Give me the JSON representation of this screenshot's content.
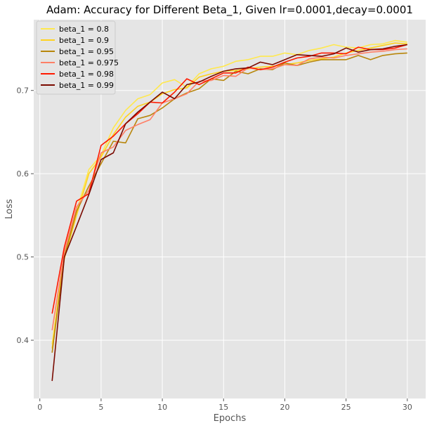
{
  "chart_data": {
    "type": "line",
    "title": "Adam: Accuracy for Different Beta_1, Given lr=0.0001,decay=0.0001",
    "xlabel": "Epochs",
    "ylabel": "Loss",
    "xlim": [
      -0.5,
      31.5
    ],
    "ylim": [
      0.33,
      0.785
    ],
    "xticks": [
      0,
      5,
      10,
      15,
      20,
      25,
      30
    ],
    "yticks": [
      0.4,
      0.5,
      0.6,
      0.7
    ],
    "ytick_labels": [
      "0.4",
      "0.5",
      "0.6",
      "0.7"
    ],
    "grid": true,
    "legend_position": "top-left",
    "x": [
      1,
      2,
      3,
      4,
      5,
      6,
      7,
      8,
      9,
      10,
      11,
      12,
      13,
      14,
      15,
      16,
      17,
      18,
      19,
      20,
      21,
      22,
      23,
      24,
      25,
      26,
      27,
      28,
      29,
      30
    ],
    "series": [
      {
        "name": "beta_1 = 0.8",
        "color": "#ffe84d",
        "values": [
          0.395,
          0.505,
          0.555,
          0.605,
          0.622,
          0.655,
          0.676,
          0.69,
          0.695,
          0.709,
          0.713,
          0.704,
          0.72,
          0.726,
          0.729,
          0.735,
          0.737,
          0.741,
          0.741,
          0.745,
          0.743,
          0.748,
          0.751,
          0.755,
          0.752,
          0.751,
          0.755,
          0.756,
          0.76,
          0.758
        ]
      },
      {
        "name": "beta_1 = 0.9",
        "color": "#ffd21f",
        "values": [
          0.39,
          0.498,
          0.55,
          0.6,
          0.62,
          0.647,
          0.668,
          0.681,
          0.686,
          0.696,
          0.701,
          0.703,
          0.716,
          0.72,
          0.723,
          0.724,
          0.726,
          0.728,
          0.729,
          0.731,
          0.733,
          0.736,
          0.738,
          0.74,
          0.745,
          0.748,
          0.751,
          0.754,
          0.757,
          0.756
        ]
      },
      {
        "name": "beta_1 = 0.95",
        "color": "#b8860b",
        "values": [
          0.385,
          0.5,
          0.555,
          0.585,
          0.612,
          0.639,
          0.637,
          0.666,
          0.67,
          0.679,
          0.69,
          0.697,
          0.702,
          0.714,
          0.712,
          0.723,
          0.72,
          0.726,
          0.725,
          0.733,
          0.73,
          0.734,
          0.737,
          0.737,
          0.737,
          0.742,
          0.737,
          0.742,
          0.744,
          0.745
        ]
      },
      {
        "name": "beta_1 = 0.975",
        "color": "#ff7f66",
        "values": [
          0.412,
          0.506,
          0.56,
          0.58,
          0.625,
          0.632,
          0.652,
          0.659,
          0.665,
          0.685,
          0.69,
          0.696,
          0.711,
          0.712,
          0.718,
          0.717,
          0.727,
          0.725,
          0.726,
          0.731,
          0.73,
          0.738,
          0.74,
          0.739,
          0.742,
          0.744,
          0.746,
          0.747,
          0.749,
          0.75
        ]
      },
      {
        "name": "beta_1 = 0.98",
        "color": "#ff1a00",
        "values": [
          0.432,
          0.512,
          0.567,
          0.576,
          0.634,
          0.645,
          0.66,
          0.672,
          0.686,
          0.685,
          0.698,
          0.714,
          0.707,
          0.714,
          0.721,
          0.721,
          0.728,
          0.725,
          0.728,
          0.734,
          0.739,
          0.741,
          0.745,
          0.745,
          0.744,
          0.752,
          0.749,
          0.749,
          0.751,
          0.755
        ]
      },
      {
        "name": "beta_1 = 0.99",
        "color": "#7a0a00",
        "values": [
          0.351,
          0.5,
          0.537,
          0.575,
          0.617,
          0.625,
          0.66,
          0.674,
          0.686,
          0.698,
          0.69,
          0.707,
          0.71,
          0.717,
          0.723,
          0.726,
          0.727,
          0.734,
          0.731,
          0.737,
          0.743,
          0.742,
          0.741,
          0.744,
          0.751,
          0.746,
          0.749,
          0.75,
          0.753,
          0.755
        ]
      }
    ]
  }
}
